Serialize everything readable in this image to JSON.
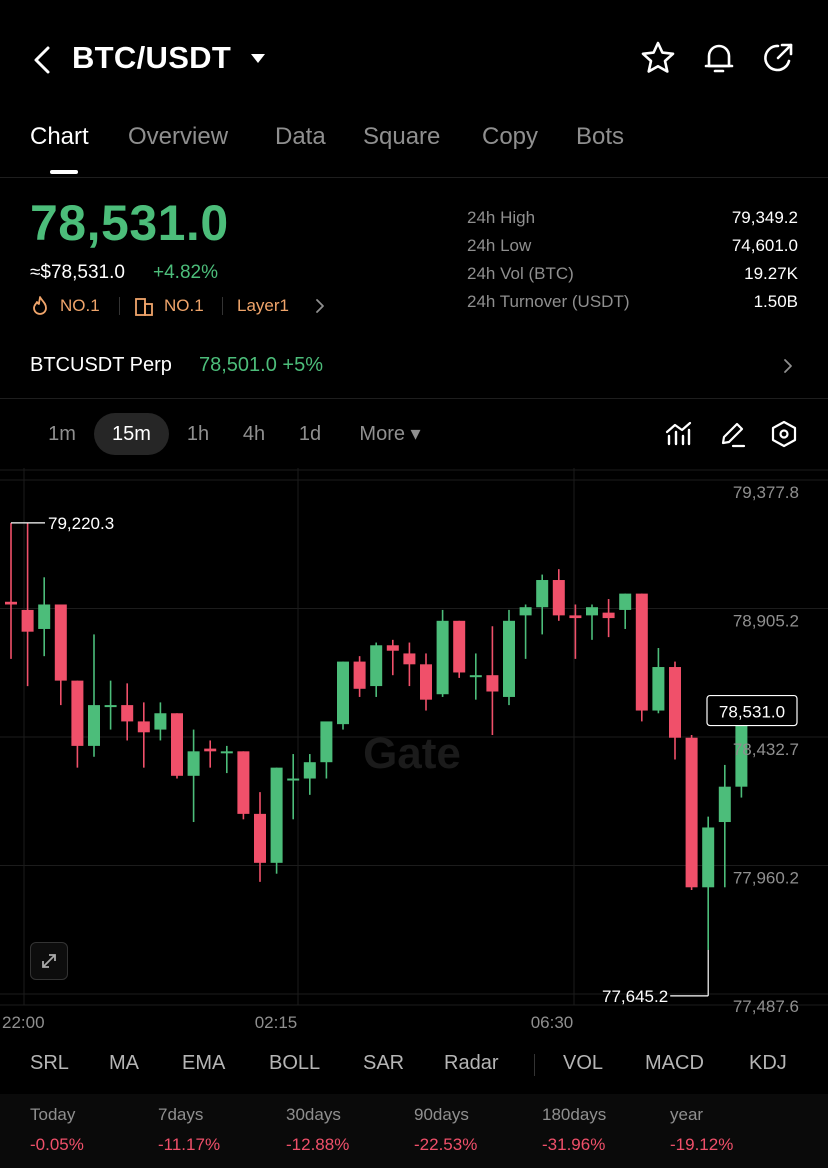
{
  "header": {
    "pair": "BTC/USDT",
    "icons": {
      "back": "chevron-left-icon",
      "dropdown": "caret-down-icon",
      "favorite": "star-icon",
      "alert": "bell-icon",
      "share": "share-icon"
    }
  },
  "tabs": [
    {
      "label": "Chart",
      "active": true
    },
    {
      "label": "Overview",
      "active": false
    },
    {
      "label": "Data",
      "active": false
    },
    {
      "label": "Square",
      "active": false
    },
    {
      "label": "Copy",
      "active": false
    },
    {
      "label": "Bots",
      "active": false
    }
  ],
  "ticker": {
    "last_price": "78,531.0",
    "approx_usd": "≈$78,531.0",
    "change_pct": "+4.82%",
    "tags": [
      {
        "icon": "flame-icon",
        "label": "NO.1"
      },
      {
        "icon": "building-icon",
        "label": "NO.1"
      },
      {
        "icon": "chevron-right-icon",
        "label": "Layer1"
      }
    ]
  },
  "stats": [
    {
      "label": "24h  High",
      "value": "79,349.2"
    },
    {
      "label": "24h  Low",
      "value": "74,601.0"
    },
    {
      "label": "24h  Vol (BTC)",
      "value": "19.27K"
    },
    {
      "label": "24h  Turnover (USDT)",
      "value": "1.50B"
    }
  ],
  "perp": {
    "name": "BTCUSDT Perp",
    "price_change": "78,501.0  +5%"
  },
  "intervals": [
    {
      "label": "1m",
      "active": false
    },
    {
      "label": "15m",
      "active": true
    },
    {
      "label": "1h",
      "active": false
    },
    {
      "label": "4h",
      "active": false
    },
    {
      "label": "1d",
      "active": false
    },
    {
      "label": "More ▾",
      "active": false
    }
  ],
  "chart_tools": [
    "indicator-icon",
    "pencil-icon",
    "settings-hexagon-icon"
  ],
  "chart": {
    "watermark": "Gate",
    "current_price_label": "78,531.0",
    "high_marker": "79,220.3",
    "low_marker": "77,645.2",
    "expand_icon": "expand-icon"
  },
  "chart_data": {
    "type": "candlestick",
    "title": "",
    "y_ticks": [
      "79,377.8",
      "78,905.2",
      "78,432.7",
      "77,960.2",
      "77,487.6"
    ],
    "y_tick_values": [
      79377.8,
      78905.2,
      78432.7,
      77960.2,
      77487.6
    ],
    "ylim": [
      77487.6,
      79377.8
    ],
    "x_ticks": [
      "22:00",
      "02:15",
      "06:30"
    ],
    "grid": true,
    "up_color": "#4cbd7a",
    "down_color": "#f0506a",
    "candles": [
      {
        "o": 78930,
        "h": 79220,
        "l": 78720,
        "c": 78920
      },
      {
        "o": 78900,
        "h": 79220,
        "l": 78620,
        "c": 78820
      },
      {
        "o": 78830,
        "h": 79020,
        "l": 78730,
        "c": 78920
      },
      {
        "o": 78920,
        "h": 78920,
        "l": 78550,
        "c": 78640
      },
      {
        "o": 78640,
        "h": 78640,
        "l": 78320,
        "c": 78400
      },
      {
        "o": 78400,
        "h": 78810,
        "l": 78360,
        "c": 78550
      },
      {
        "o": 78550,
        "h": 78640,
        "l": 78460,
        "c": 78550
      },
      {
        "o": 78550,
        "h": 78630,
        "l": 78420,
        "c": 78490
      },
      {
        "o": 78490,
        "h": 78560,
        "l": 78320,
        "c": 78450
      },
      {
        "o": 78460,
        "h": 78560,
        "l": 78420,
        "c": 78520
      },
      {
        "o": 78520,
        "h": 78520,
        "l": 78280,
        "c": 78290
      },
      {
        "o": 78290,
        "h": 78460,
        "l": 78120,
        "c": 78380
      },
      {
        "o": 78390,
        "h": 78420,
        "l": 78320,
        "c": 78380
      },
      {
        "o": 78380,
        "h": 78400,
        "l": 78300,
        "c": 78380
      },
      {
        "o": 78380,
        "h": 78380,
        "l": 78130,
        "c": 78150
      },
      {
        "o": 78150,
        "h": 78230,
        "l": 77900,
        "c": 77970
      },
      {
        "o": 77970,
        "h": 78320,
        "l": 77930,
        "c": 78320
      },
      {
        "o": 78280,
        "h": 78370,
        "l": 78130,
        "c": 78280
      },
      {
        "o": 78280,
        "h": 78370,
        "l": 78220,
        "c": 78340
      },
      {
        "o": 78340,
        "h": 78480,
        "l": 78280,
        "c": 78490
      },
      {
        "o": 78480,
        "h": 78710,
        "l": 78460,
        "c": 78710
      },
      {
        "o": 78710,
        "h": 78730,
        "l": 78580,
        "c": 78610
      },
      {
        "o": 78620,
        "h": 78780,
        "l": 78580,
        "c": 78770
      },
      {
        "o": 78770,
        "h": 78790,
        "l": 78660,
        "c": 78750
      },
      {
        "o": 78740,
        "h": 78780,
        "l": 78620,
        "c": 78700
      },
      {
        "o": 78700,
        "h": 78740,
        "l": 78530,
        "c": 78570
      },
      {
        "o": 78590,
        "h": 78900,
        "l": 78580,
        "c": 78860
      },
      {
        "o": 78860,
        "h": 78860,
        "l": 78650,
        "c": 78670
      },
      {
        "o": 78660,
        "h": 78740,
        "l": 78570,
        "c": 78660
      },
      {
        "o": 78660,
        "h": 78840,
        "l": 78440,
        "c": 78600
      },
      {
        "o": 78580,
        "h": 78900,
        "l": 78550,
        "c": 78860
      },
      {
        "o": 78880,
        "h": 78920,
        "l": 78720,
        "c": 78910
      },
      {
        "o": 78910,
        "h": 79030,
        "l": 78810,
        "c": 79010
      },
      {
        "o": 79010,
        "h": 79050,
        "l": 78860,
        "c": 78880
      },
      {
        "o": 78880,
        "h": 78920,
        "l": 78720,
        "c": 78870
      },
      {
        "o": 78880,
        "h": 78920,
        "l": 78790,
        "c": 78910
      },
      {
        "o": 78890,
        "h": 78940,
        "l": 78800,
        "c": 78870
      },
      {
        "o": 78900,
        "h": 78960,
        "l": 78830,
        "c": 78960
      },
      {
        "o": 78960,
        "h": 78960,
        "l": 78490,
        "c": 78530
      },
      {
        "o": 78530,
        "h": 78760,
        "l": 78520,
        "c": 78690
      },
      {
        "o": 78690,
        "h": 78710,
        "l": 78350,
        "c": 78430
      },
      {
        "o": 78430,
        "h": 78440,
        "l": 77870,
        "c": 77880
      },
      {
        "o": 77880,
        "h": 78140,
        "l": 77650,
        "c": 78100
      },
      {
        "o": 78120,
        "h": 78330,
        "l": 77880,
        "c": 78250
      },
      {
        "o": 78250,
        "h": 78540,
        "l": 78210,
        "c": 78530
      }
    ]
  },
  "indicators": [
    "SRL",
    "MA",
    "EMA",
    "BOLL",
    "SAR",
    "Radar",
    "VOL",
    "MACD",
    "KDJ"
  ],
  "returns": [
    {
      "label": "Today",
      "value": "-0.05%"
    },
    {
      "label": "7days",
      "value": "-11.17%"
    },
    {
      "label": "30days",
      "value": "-12.88%"
    },
    {
      "label": "90days",
      "value": "-22.53%"
    },
    {
      "label": "180days",
      "value": "-31.96%"
    },
    {
      "label": "year",
      "value": "-19.12%"
    }
  ],
  "colors": {
    "up": "#4cbd7a",
    "down": "#f0506a",
    "tag": "#f0a56b",
    "muted": "#8f8f8f"
  }
}
